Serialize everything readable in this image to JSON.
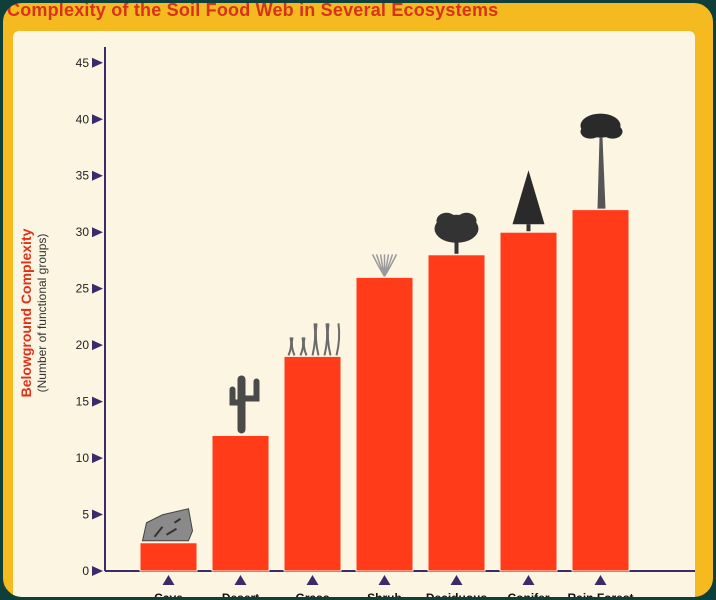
{
  "colors": {
    "frame": "#0f3f3a",
    "background": "#f4ba1f",
    "plot_background": "#fbf5e2",
    "title": "#d8321c",
    "bar": "#ff3b1a",
    "axis": "#3d2a6b",
    "ylabel": "#e0311a"
  },
  "chart_data": {
    "type": "bar",
    "title": "Complexity of the Soil Food Web in Several Ecosystems",
    "ylabel": "Belowground Complexity",
    "ylabel_sub": "(Number of functional groups)",
    "xlabel": "",
    "ylim": [
      0,
      45
    ],
    "yticks": [
      0,
      5,
      10,
      15,
      20,
      25,
      30,
      35,
      40,
      45
    ],
    "grid": false,
    "categories": [
      "Cave",
      "Desert",
      "Grass",
      "Shrub",
      "Deciduous",
      "Conifer",
      "Rain Forest"
    ],
    "values": [
      2.5,
      12,
      19,
      26,
      28,
      30,
      32
    ],
    "icons": [
      "rock-icon",
      "cactus-icon",
      "grass-icon",
      "shrub-icon",
      "deciduous-tree-icon",
      "conifer-tree-icon",
      "rainforest-tree-icon"
    ]
  }
}
